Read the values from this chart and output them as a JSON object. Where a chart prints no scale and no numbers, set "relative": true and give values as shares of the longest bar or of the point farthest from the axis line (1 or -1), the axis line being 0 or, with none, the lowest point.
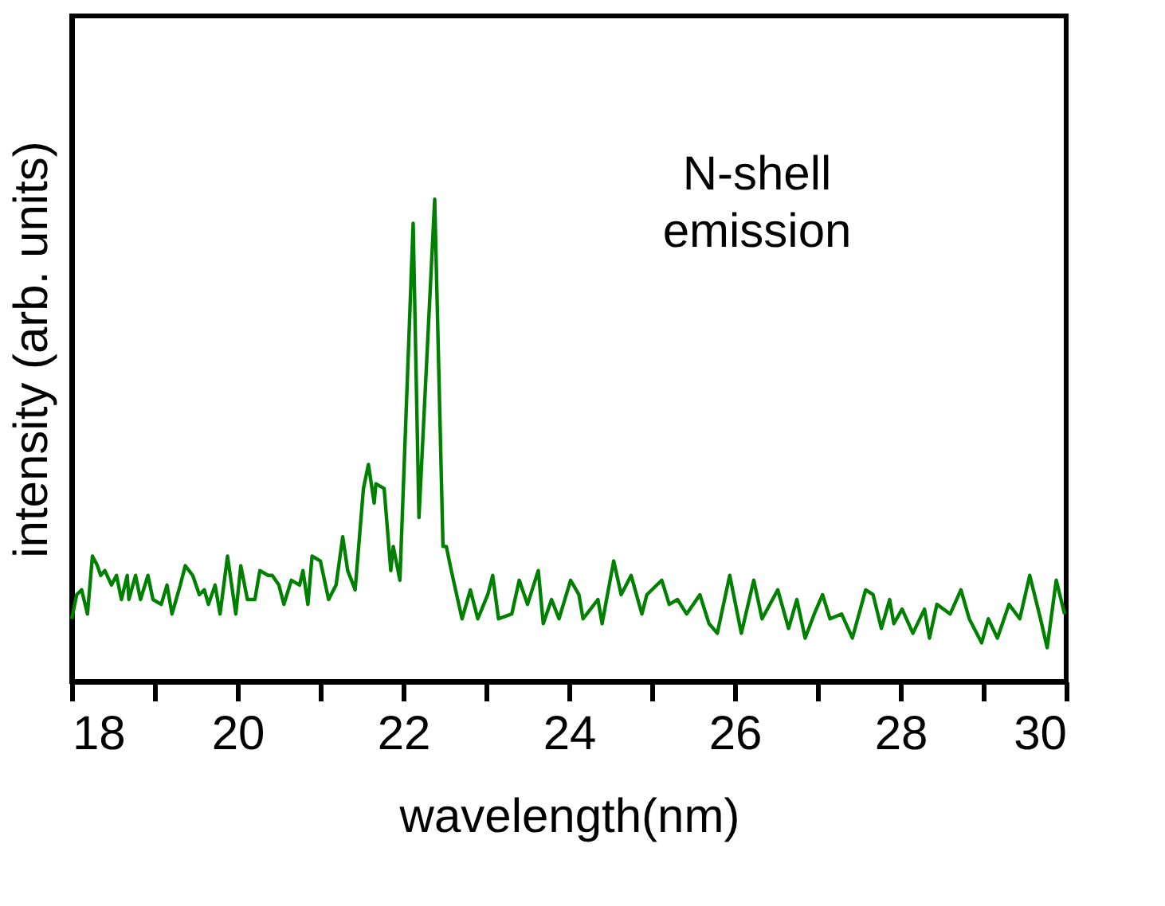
{
  "chart_data": {
    "type": "line",
    "relative": true,
    "xlabel": "wavelength(nm)",
    "ylabel": "intensity (arb. units)",
    "annotations": [
      "N-shell\nemission"
    ],
    "xlim": [
      18,
      30
    ],
    "xticks": [
      18,
      {
        "value": 19,
        "label": null
      },
      20,
      {
        "value": 21,
        "label": null
      },
      22,
      {
        "value": 23,
        "label": null
      },
      24,
      {
        "value": 25,
        "label": null
      },
      26,
      {
        "value": 27,
        "label": null
      },
      28,
      {
        "value": 29,
        "label": null
      },
      30
    ],
    "grid": false,
    "series": [
      {
        "color": "#008000",
        "x": [
          18.0,
          18.06,
          18.12,
          18.19,
          18.25,
          18.31,
          18.35,
          18.4,
          18.48,
          18.54,
          18.6,
          18.67,
          18.69,
          18.77,
          18.83,
          18.92,
          18.98,
          19.08,
          19.15,
          19.21,
          19.31,
          19.37,
          19.46,
          19.54,
          19.6,
          19.65,
          19.73,
          19.79,
          19.88,
          19.98,
          20.04,
          20.12,
          20.21,
          20.27,
          20.37,
          20.42,
          20.5,
          20.56,
          20.65,
          20.75,
          20.79,
          20.85,
          20.9,
          21.0,
          21.1,
          21.19,
          21.27,
          21.33,
          21.42,
          21.52,
          21.58,
          21.65,
          21.67,
          21.77,
          21.85,
          21.88,
          21.96,
          22.12,
          22.19,
          22.38,
          22.48,
          22.52,
          22.58,
          22.71,
          22.81,
          22.9,
          23.02,
          23.08,
          23.15,
          23.31,
          23.4,
          23.5,
          23.63,
          23.69,
          23.79,
          23.88,
          24.02,
          24.12,
          24.17,
          24.35,
          24.4,
          24.54,
          24.63,
          24.75,
          24.88,
          24.94,
          25.12,
          25.21,
          25.31,
          25.42,
          25.58,
          25.69,
          25.79,
          25.94,
          26.08,
          26.23,
          26.33,
          26.52,
          26.65,
          26.75,
          26.85,
          26.96,
          27.06,
          27.15,
          27.29,
          27.42,
          27.58,
          27.67,
          27.77,
          27.87,
          27.92,
          28.02,
          28.15,
          28.29,
          28.35,
          28.44,
          28.6,
          28.73,
          28.83,
          28.98,
          29.06,
          29.17,
          29.31,
          29.44,
          29.56,
          29.69,
          29.77,
          29.88,
          29.98
        ],
        "values": [
          0.13,
          0.18,
          0.19,
          0.14,
          0.26,
          0.24,
          0.22,
          0.23,
          0.2,
          0.22,
          0.17,
          0.22,
          0.17,
          0.22,
          0.17,
          0.22,
          0.17,
          0.16,
          0.2,
          0.14,
          0.2,
          0.24,
          0.22,
          0.18,
          0.19,
          0.16,
          0.2,
          0.14,
          0.26,
          0.14,
          0.24,
          0.17,
          0.17,
          0.23,
          0.22,
          0.22,
          0.2,
          0.16,
          0.21,
          0.2,
          0.23,
          0.16,
          0.26,
          0.25,
          0.17,
          0.2,
          0.3,
          0.23,
          0.19,
          0.4,
          0.45,
          0.37,
          0.41,
          0.4,
          0.23,
          0.28,
          0.21,
          0.95,
          0.34,
          1.0,
          0.28,
          0.28,
          0.23,
          0.13,
          0.19,
          0.13,
          0.18,
          0.22,
          0.13,
          0.14,
          0.21,
          0.16,
          0.23,
          0.12,
          0.17,
          0.13,
          0.21,
          0.18,
          0.13,
          0.17,
          0.12,
          0.25,
          0.18,
          0.22,
          0.14,
          0.18,
          0.21,
          0.16,
          0.17,
          0.14,
          0.18,
          0.12,
          0.1,
          0.22,
          0.1,
          0.21,
          0.13,
          0.19,
          0.11,
          0.17,
          0.09,
          0.14,
          0.18,
          0.13,
          0.14,
          0.09,
          0.19,
          0.18,
          0.11,
          0.17,
          0.12,
          0.15,
          0.1,
          0.15,
          0.09,
          0.16,
          0.14,
          0.19,
          0.13,
          0.08,
          0.13,
          0.09,
          0.16,
          0.13,
          0.22,
          0.13,
          0.07,
          0.21,
          0.14
        ]
      }
    ]
  }
}
